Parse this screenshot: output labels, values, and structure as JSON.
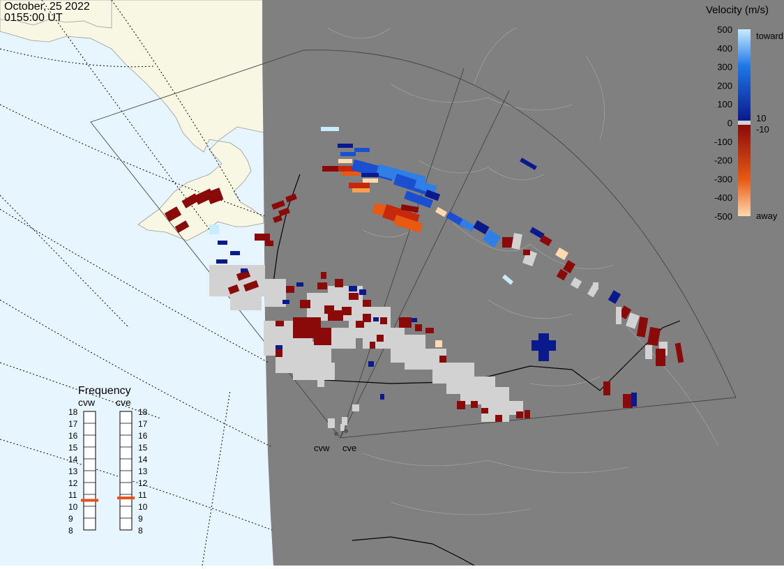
{
  "header": {
    "date": "October, 25 2022",
    "time": "0155:00 UT"
  },
  "colorbar": {
    "title": "Velocity (m/s)",
    "ticks": [
      "500",
      "400",
      "300",
      "200",
      "100",
      "0",
      "-100",
      "-200",
      "-300",
      "-400",
      "-500"
    ],
    "inner_labels": [
      "10",
      "-10"
    ],
    "toward_label": "toward",
    "away_label": "away",
    "colors": {
      "toward_max": "#c8ecff",
      "toward_mid": "#1e78e8",
      "toward_min": "#0a1a8c",
      "away_min": "#8a0a0a",
      "away_mid": "#e85a12",
      "away_max": "#ffd9b0",
      "zero_band": "#d2d2d2"
    }
  },
  "frequency_panel": {
    "title": "Frequency",
    "columns": [
      {
        "name": "cvw",
        "value_mhz": 10.5
      },
      {
        "name": "cve",
        "value_mhz": 10.7
      }
    ],
    "scale": [
      "18",
      "17",
      "16",
      "15",
      "14",
      "13",
      "12",
      "11",
      "10",
      "9",
      "8"
    ],
    "indicator_color": "#e8501a"
  },
  "map": {
    "radar_sites": [
      {
        "name": "cvw"
      },
      {
        "name": "cve"
      }
    ],
    "colors": {
      "ocean": "#e6f5ff",
      "land_sunlit": "#f7f7e4",
      "night_shade": "#808080",
      "ground_scatter": "#d2d2d2",
      "border": "#000000",
      "coast_night": "#a0a0a0"
    }
  }
}
